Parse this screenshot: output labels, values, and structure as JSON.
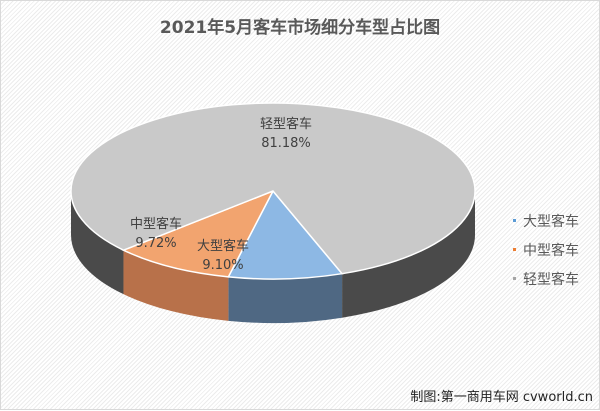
{
  "chart_data": {
    "type": "pie",
    "style": "3d",
    "title": "2021年5月客车市场细分车型占比图",
    "slices": [
      {
        "name": "大型客车",
        "value": 9.1,
        "label": "9.10%",
        "color": "#8db8e4"
      },
      {
        "name": "中型客车",
        "value": 9.72,
        "label": "9.72%",
        "color": "#f2a46f"
      },
      {
        "name": "轻型客车",
        "value": 81.18,
        "label": "81.18%",
        "color": "#c9c9c9"
      }
    ],
    "legend_position": "right"
  },
  "credit": "制图:第一商用车网 cvworld.cn"
}
